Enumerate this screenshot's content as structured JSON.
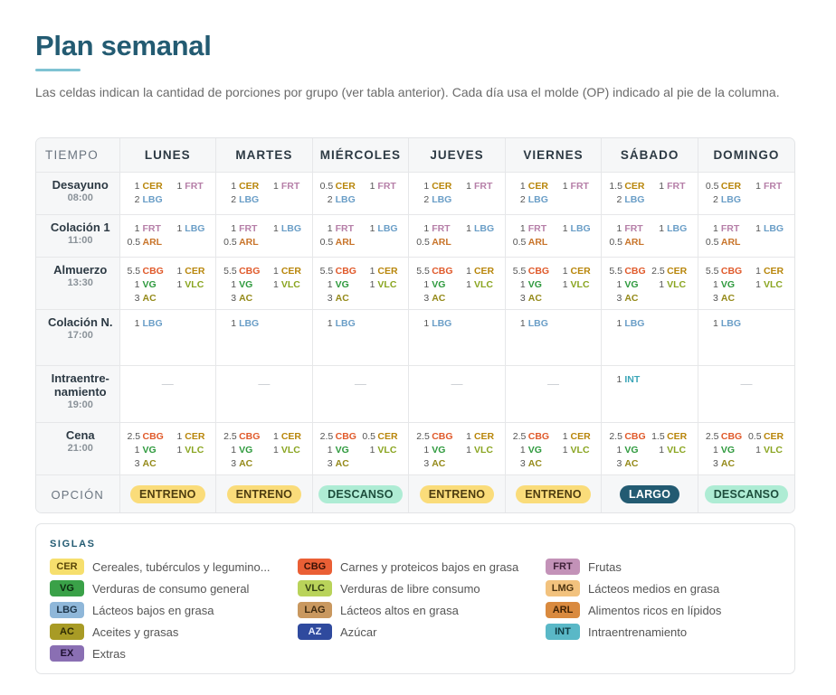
{
  "title": "Plan semanal",
  "intro": "Las celdas indican la cantidad de porciones por grupo (ver tabla anterior). Cada día usa el molde (OP) indicado al pie de la columna.",
  "table": {
    "corner": "TIEMPO",
    "days": [
      "LUNES",
      "MARTES",
      "MIÉRCOLES",
      "JUEVES",
      "VIERNES",
      "SÁBADO",
      "DOMINGO"
    ],
    "option_label": "OPCIÓN",
    "options": [
      "ENTRENO",
      "ENTRENO",
      "DESCANSO",
      "ENTRENO",
      "ENTRENO",
      "LARGO",
      "DESCANSO"
    ],
    "rows": [
      {
        "name": "Desayuno",
        "time": "08:00",
        "cls": "r-des",
        "cells": [
          [
            [
              "1",
              "CER"
            ],
            [
              "1",
              "FRT"
            ],
            [
              "2",
              "LBG"
            ]
          ],
          [
            [
              "1",
              "CER"
            ],
            [
              "1",
              "FRT"
            ],
            [
              "2",
              "LBG"
            ]
          ],
          [
            [
              "0.5",
              "CER"
            ],
            [
              "1",
              "FRT"
            ],
            [
              "2",
              "LBG"
            ]
          ],
          [
            [
              "1",
              "CER"
            ],
            [
              "1",
              "FRT"
            ],
            [
              "2",
              "LBG"
            ]
          ],
          [
            [
              "1",
              "CER"
            ],
            [
              "1",
              "FRT"
            ],
            [
              "2",
              "LBG"
            ]
          ],
          [
            [
              "1.5",
              "CER"
            ],
            [
              "1",
              "FRT"
            ],
            [
              "2",
              "LBG"
            ]
          ],
          [
            [
              "0.5",
              "CER"
            ],
            [
              "1",
              "FRT"
            ],
            [
              "2",
              "LBG"
            ]
          ]
        ]
      },
      {
        "name": "Colación 1",
        "time": "11:00",
        "cls": "r-col",
        "cells": [
          [
            [
              "1",
              "FRT"
            ],
            [
              "1",
              "LBG"
            ],
            [
              "0.5",
              "ARL"
            ]
          ],
          [
            [
              "1",
              "FRT"
            ],
            [
              "1",
              "LBG"
            ],
            [
              "0.5",
              "ARL"
            ]
          ],
          [
            [
              "1",
              "FRT"
            ],
            [
              "1",
              "LBG"
            ],
            [
              "0.5",
              "ARL"
            ]
          ],
          [
            [
              "1",
              "FRT"
            ],
            [
              "1",
              "LBG"
            ],
            [
              "0.5",
              "ARL"
            ]
          ],
          [
            [
              "1",
              "FRT"
            ],
            [
              "1",
              "LBG"
            ],
            [
              "0.5",
              "ARL"
            ]
          ],
          [
            [
              "1",
              "FRT"
            ],
            [
              "1",
              "LBG"
            ],
            [
              "0.5",
              "ARL"
            ]
          ],
          [
            [
              "1",
              "FRT"
            ],
            [
              "1",
              "LBG"
            ],
            [
              "0.5",
              "ARL"
            ]
          ]
        ]
      },
      {
        "name": "Almuerzo",
        "time": "13:30",
        "cls": "r-alm",
        "cells": [
          [
            [
              "5.5",
              "CBG"
            ],
            [
              "1",
              "CER"
            ],
            [
              "1",
              "VG"
            ],
            [
              "1",
              "VLC"
            ],
            [
              "3",
              "AC"
            ]
          ],
          [
            [
              "5.5",
              "CBG"
            ],
            [
              "1",
              "CER"
            ],
            [
              "1",
              "VG"
            ],
            [
              "1",
              "VLC"
            ],
            [
              "3",
              "AC"
            ]
          ],
          [
            [
              "5.5",
              "CBG"
            ],
            [
              "1",
              "CER"
            ],
            [
              "1",
              "VG"
            ],
            [
              "1",
              "VLC"
            ],
            [
              "3",
              "AC"
            ]
          ],
          [
            [
              "5.5",
              "CBG"
            ],
            [
              "1",
              "CER"
            ],
            [
              "1",
              "VG"
            ],
            [
              "1",
              "VLC"
            ],
            [
              "3",
              "AC"
            ]
          ],
          [
            [
              "5.5",
              "CBG"
            ],
            [
              "1",
              "CER"
            ],
            [
              "1",
              "VG"
            ],
            [
              "1",
              "VLC"
            ],
            [
              "3",
              "AC"
            ]
          ],
          [
            [
              "5.5",
              "CBG"
            ],
            [
              "2.5",
              "CER"
            ],
            [
              "1",
              "VG"
            ],
            [
              "1",
              "VLC"
            ],
            [
              "3",
              "AC"
            ]
          ],
          [
            [
              "5.5",
              "CBG"
            ],
            [
              "1",
              "CER"
            ],
            [
              "1",
              "VG"
            ],
            [
              "1",
              "VLC"
            ],
            [
              "3",
              "AC"
            ]
          ]
        ]
      },
      {
        "name": "Colación N.",
        "time": "17:00",
        "cls": "r-coln",
        "cells": [
          [
            [
              "1",
              "LBG"
            ]
          ],
          [
            [
              "1",
              "LBG"
            ]
          ],
          [
            [
              "1",
              "LBG"
            ]
          ],
          [
            [
              "1",
              "LBG"
            ]
          ],
          [
            [
              "1",
              "LBG"
            ]
          ],
          [
            [
              "1",
              "LBG"
            ]
          ],
          [
            [
              "1",
              "LBG"
            ]
          ]
        ]
      },
      {
        "name": "Intraentre-namiento",
        "time": "19:00",
        "cls": "r-int",
        "cells": [
          [],
          [],
          [],
          [],
          [],
          [
            [
              "1",
              "INT"
            ]
          ],
          []
        ]
      },
      {
        "name": "Cena",
        "time": "21:00",
        "cls": "r-cen",
        "cells": [
          [
            [
              "2.5",
              "CBG"
            ],
            [
              "1",
              "CER"
            ],
            [
              "1",
              "VG"
            ],
            [
              "1",
              "VLC"
            ],
            [
              "3",
              "AC"
            ]
          ],
          [
            [
              "2.5",
              "CBG"
            ],
            [
              "1",
              "CER"
            ],
            [
              "1",
              "VG"
            ],
            [
              "1",
              "VLC"
            ],
            [
              "3",
              "AC"
            ]
          ],
          [
            [
              "2.5",
              "CBG"
            ],
            [
              "0.5",
              "CER"
            ],
            [
              "1",
              "VG"
            ],
            [
              "1",
              "VLC"
            ],
            [
              "3",
              "AC"
            ]
          ],
          [
            [
              "2.5",
              "CBG"
            ],
            [
              "1",
              "CER"
            ],
            [
              "1",
              "VG"
            ],
            [
              "1",
              "VLC"
            ],
            [
              "3",
              "AC"
            ]
          ],
          [
            [
              "2.5",
              "CBG"
            ],
            [
              "1",
              "CER"
            ],
            [
              "1",
              "VG"
            ],
            [
              "1",
              "VLC"
            ],
            [
              "3",
              "AC"
            ]
          ],
          [
            [
              "2.5",
              "CBG"
            ],
            [
              "1.5",
              "CER"
            ],
            [
              "1",
              "VG"
            ],
            [
              "1",
              "VLC"
            ],
            [
              "3",
              "AC"
            ]
          ],
          [
            [
              "2.5",
              "CBG"
            ],
            [
              "0.5",
              "CER"
            ],
            [
              "1",
              "VG"
            ],
            [
              "1",
              "VLC"
            ],
            [
              "3",
              "AC"
            ]
          ]
        ]
      }
    ],
    "empty_mark": "—"
  },
  "groups": {
    "CER": {
      "label": "Cereales, tubérculos y legumino...",
      "color": "#b8860b",
      "chip": "#f6df6d",
      "chip_text": "#5a4608"
    },
    "CBG": {
      "label": "Carnes y proteicos bajos en grasa",
      "color": "#e05a2b",
      "chip": "#ea5f35",
      "chip_text": "#3a1206"
    },
    "FRT": {
      "label": "Frutas",
      "color": "#b67fa8",
      "chip": "#c392b8",
      "chip_text": "#3d1f36"
    },
    "VG": {
      "label": "Verduras de consumo general",
      "color": "#2f9a3e",
      "chip": "#3aa148",
      "chip_text": "#0b2a10"
    },
    "VLC": {
      "label": "Verduras de libre consumo",
      "color": "#8aa521",
      "chip": "#b9d35a",
      "chip_text": "#334012"
    },
    "LMG": {
      "label": "Lácteos medios en grasa",
      "color": "#d6a14d",
      "chip": "#f2c27e",
      "chip_text": "#4e3410"
    },
    "LBG": {
      "label": "Lácteos bajos en grasa",
      "color": "#6a9ec7",
      "chip": "#8fb7d9",
      "chip_text": "#1c3448"
    },
    "LAG": {
      "label": "Lácteos altos en grasa",
      "color": "#b8874d",
      "chip": "#c9985f",
      "chip_text": "#3e2a10"
    },
    "ARL": {
      "label": "Alimentos ricos en lípidos",
      "color": "#c8742a",
      "chip": "#d98a3f",
      "chip_text": "#3f2205"
    },
    "AC": {
      "label": "Aceites y grasas",
      "color": "#958a1a",
      "chip": "#a89b25",
      "chip_text": "#2f2b05"
    },
    "AZ": {
      "label": "Azúcar",
      "color": "#2e4a9a",
      "chip": "#2f4a9e",
      "chip_text": "#e6ecff"
    },
    "INT": {
      "label": "Intraentrenamiento",
      "color": "#3ca6b8",
      "chip": "#5ab8c7",
      "chip_text": "#0e3a42"
    },
    "EX": {
      "label": "Extras",
      "color": "#7e64a8",
      "chip": "#8a6fb3",
      "chip_text": "#1e1030"
    }
  },
  "legend": {
    "title": "SIGLAS",
    "order": [
      "CER",
      "CBG",
      "FRT",
      "VG",
      "VLC",
      "LMG",
      "LBG",
      "LAG",
      "ARL",
      "AC",
      "AZ",
      "INT",
      "EX"
    ]
  }
}
